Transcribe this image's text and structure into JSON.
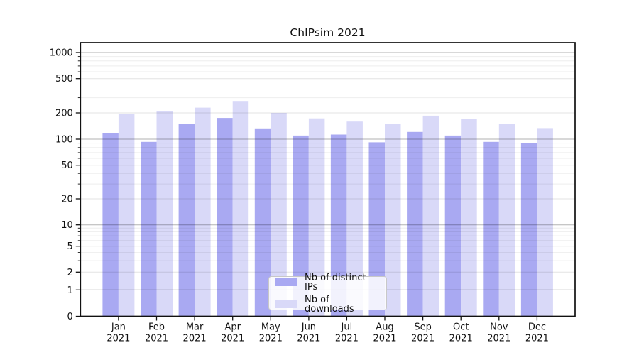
{
  "chart_data": {
    "type": "bar",
    "title": "ChIPsim 2021",
    "categories": [
      "Jan 2021",
      "Feb 2021",
      "Mar 2021",
      "Apr 2021",
      "May 2021",
      "Jun 2021",
      "Jul 2021",
      "Aug 2021",
      "Sep 2021",
      "Oct 2021",
      "Nov 2021",
      "Dec 2021"
    ],
    "series": [
      {
        "name": "Nb of distinct IPs",
        "color": "#a9a9f2",
        "values": [
          118,
          93,
          150,
          175,
          133,
          110,
          113,
          92,
          121,
          110,
          93,
          91
        ]
      },
      {
        "name": "Nb of downloads",
        "color": "#d9d9f8",
        "values": [
          195,
          210,
          230,
          275,
          200,
          173,
          159,
          149,
          186,
          169,
          150,
          134
        ]
      }
    ],
    "y_ticks": [
      0,
      1,
      2,
      5,
      10,
      20,
      50,
      100,
      200,
      500,
      1000
    ],
    "yscale": "log-like (pseudo-log with 0 baseline)",
    "ylim": [
      0,
      1300
    ],
    "xlabel": "",
    "ylabel": "",
    "grid": true,
    "legend_position": "lower center",
    "frame_color": "#111111",
    "decade_gridline_values": [
      1,
      10,
      100,
      1000
    ]
  }
}
